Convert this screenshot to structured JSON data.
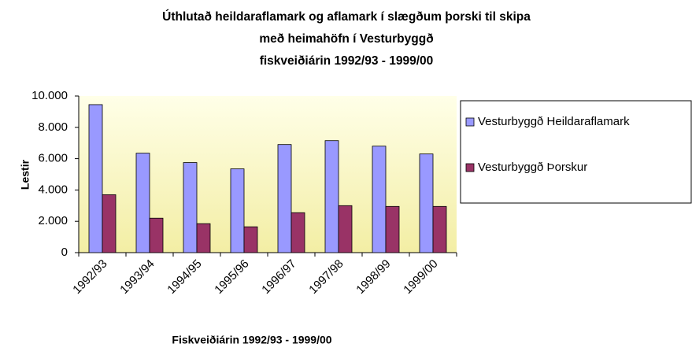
{
  "chart_data": {
    "type": "bar",
    "title": [
      "Úthlutað heildaraflamark og aflamark í slægðum þorski til skipa",
      "með heimahöfn í Vesturbyggð",
      "fiskveiðiárin 1992/93 - 1999/00"
    ],
    "x_label": "Fiskveiðiárin 1992/93 - 1999/00",
    "y_label": "Lestir",
    "categories": [
      "1992/93",
      "1993/94",
      "1994/95",
      "1995/96",
      "1996/97",
      "1997/98",
      "1998/99",
      "1999/00"
    ],
    "series": [
      {
        "name": "Vesturbyggð Heildaraflamark",
        "color": "#9999ff",
        "values": [
          9450,
          6350,
          5750,
          5350,
          6900,
          7150,
          6800,
          6300
        ]
      },
      {
        "name": "Vesturbyggð Þorskur",
        "color": "#993366",
        "values": [
          3700,
          2200,
          1850,
          1650,
          2550,
          3000,
          2950,
          2950
        ]
      }
    ],
    "ylim": [
      0,
      10000
    ],
    "yticks": [
      0,
      {
        "value": 2000,
        "label": "2.000"
      },
      {
        "value": 4000,
        "label": "4.000"
      },
      {
        "value": 6000,
        "label": "6.000"
      },
      {
        "value": 8000,
        "label": "8.000"
      },
      {
        "value": 10000,
        "label": "10.000"
      }
    ],
    "grid": false,
    "legend": "right"
  }
}
